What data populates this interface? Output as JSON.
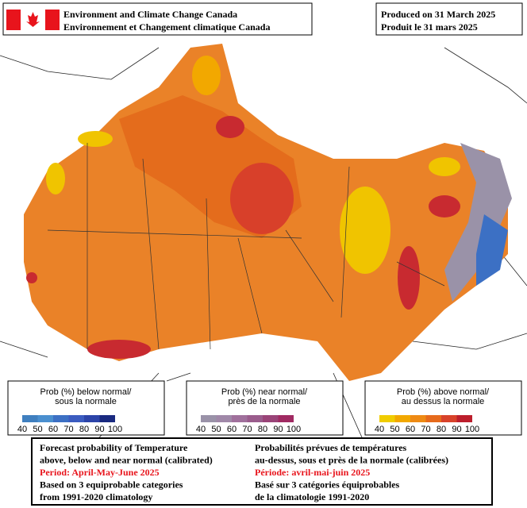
{
  "header": {
    "agency_en": "Environment and Climate Change Canada",
    "agency_fr": "Environnement et Changement climatique Canada"
  },
  "produced": {
    "en": "Produced on 31 March 2025",
    "fr": "Produit le 31 mars 2025"
  },
  "legends": [
    {
      "title_1": "Prob (%) below normal/",
      "title_2": "sous la normale",
      "labels": [
        40,
        50,
        60,
        70,
        80,
        90,
        100
      ],
      "colors": [
        "#3f7fbf",
        "#4a8fcf",
        "#3c70c4",
        "#3b5cc0",
        "#2c44a8",
        "#1a2a80"
      ]
    },
    {
      "title_1": "Prob (%) near normal/",
      "title_2": "près de la normale",
      "labels": [
        40,
        50,
        60,
        70,
        80,
        90,
        100
      ],
      "colors": [
        "#9a92a8",
        "#a088a8",
        "#a0709c",
        "#9a5c8c",
        "#9a4478",
        "#a02a62"
      ]
    },
    {
      "title_1": "Prob (%) above normal/",
      "title_2": "au dessus la normale",
      "labels": [
        40,
        50,
        60,
        70,
        80,
        90,
        100
      ],
      "colors": [
        "#f0cc00",
        "#f2a800",
        "#ee8a14",
        "#e66a1c",
        "#d8422a",
        "#bc1e2c"
      ]
    }
  ],
  "description": {
    "left": [
      "Forecast probability of Temperature",
      "above, below and near normal (calibrated)",
      "Period: April-May-June 2025",
      "Based on 3 equiprobable categories",
      " from 1991-2020 climatology"
    ],
    "right": [
      "Probabilités prévues de températures",
      "au-dessus, sous et près de la normale (calibrées)",
      "Période: avril-mai-juin 2025",
      "Basé sur 3 catégories équiprobables",
      "de la climatologie 1991-2020"
    ]
  }
}
